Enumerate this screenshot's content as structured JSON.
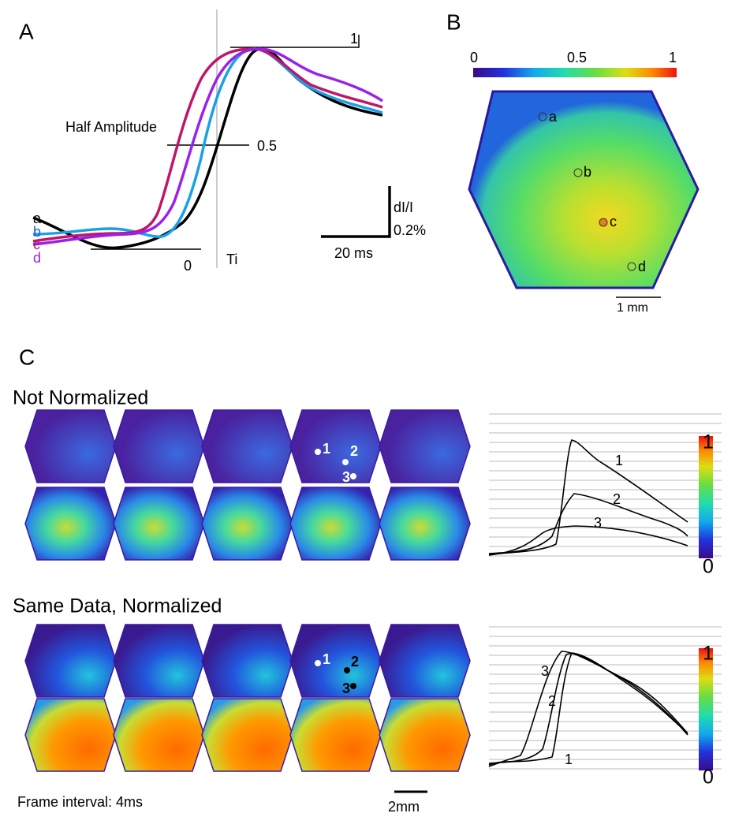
{
  "panel_a": {
    "label": "A",
    "peak_label": "1",
    "half_label": "Half Amplitude",
    "half_value": "0.5",
    "base_label": "0",
    "time_label": "Ti",
    "traces": [
      "a",
      "b",
      "c",
      "d"
    ],
    "scale_y": "dI/I",
    "scale_y_value": "0.2%",
    "scale_x": "20 ms"
  },
  "panel_b": {
    "label": "B",
    "colorbar_ticks": [
      "0",
      "0.5",
      "1"
    ],
    "points": [
      "a",
      "b",
      "c",
      "d"
    ],
    "scale": "1 mm"
  },
  "panel_c": {
    "label": "C",
    "rows": [
      {
        "title": "Not Normalized",
        "map_points": [
          "1",
          "2",
          "3"
        ],
        "trace_labels": [
          "1",
          "2",
          "3"
        ],
        "colorbar": [
          "1",
          "0"
        ]
      },
      {
        "title": "Same Data, Normalized",
        "map_points": [
          "1",
          "2",
          "3"
        ],
        "trace_labels": [
          "1",
          "2",
          "3"
        ],
        "colorbar": [
          "1",
          "0"
        ]
      }
    ],
    "frame_interval": "Frame interval: 4ms",
    "scale": "2mm"
  }
}
